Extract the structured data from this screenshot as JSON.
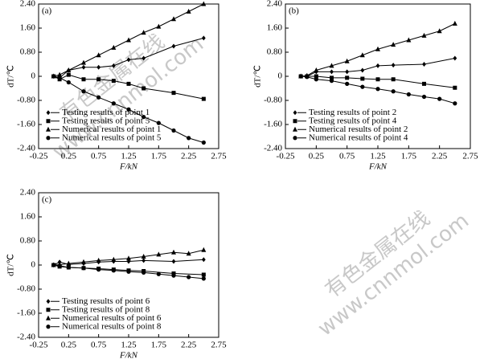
{
  "watermark": {
    "line_1": "有色金属在线",
    "line_2": "www.cnnmol.com"
  },
  "chart_data": [
    {
      "type": "line",
      "panel_label": "(a)",
      "x_label": "F/kN",
      "y_label": "dT/℃",
      "legend": "lower-left",
      "xlim": [
        -0.25,
        2.75
      ],
      "ylim": [
        -2.4,
        2.4
      ],
      "xticks": [
        {
          "value": -0.25,
          "label": "-0.25"
        },
        {
          "value": 0.25,
          "label": "0.25"
        },
        {
          "value": 0.75,
          "label": "0.75"
        },
        {
          "value": 1.25,
          "label": "1.25"
        },
        {
          "value": 1.75,
          "label": "1.75"
        },
        {
          "value": 2.25,
          "label": "2.25"
        },
        {
          "value": 2.75,
          "label": "2.75"
        }
      ],
      "yticks": [
        {
          "value": 2.4,
          "label": "2.40"
        },
        {
          "value": 1.6,
          "label": "1.60"
        },
        {
          "value": 0.8,
          "label": "0.80"
        },
        0,
        {
          "value": -0.8,
          "label": "-0.80"
        },
        {
          "value": -1.6,
          "label": "-1.60"
        },
        {
          "value": -2.4,
          "label": "-2.40"
        }
      ],
      "series": [
        {
          "name": "Testing results of point 1",
          "color": "#000000",
          "marker": "diamond",
          "x": [
            0,
            0.1,
            0.25,
            0.5,
            0.75,
            1.0,
            1.25,
            1.5,
            2.0,
            2.5
          ],
          "values": [
            0,
            -0.05,
            0.2,
            0.3,
            0.3,
            0.35,
            0.55,
            0.6,
            1.0,
            1.27
          ]
        },
        {
          "name": "Testing results of point 5",
          "color": "#000000",
          "marker": "square",
          "x": [
            0,
            0.1,
            0.25,
            0.5,
            0.75,
            1.0,
            1.25,
            1.5,
            2.0,
            2.5
          ],
          "values": [
            0,
            -0.1,
            0.05,
            -0.1,
            -0.1,
            -0.15,
            -0.25,
            -0.4,
            -0.55,
            -0.75
          ]
        },
        {
          "name": "Numerical results of point 1",
          "color": "#000000",
          "marker": "triangle",
          "x": [
            0,
            0.1,
            0.25,
            0.5,
            0.75,
            1.0,
            1.25,
            1.5,
            1.75,
            2.0,
            2.25,
            2.5
          ],
          "values": [
            0,
            0.05,
            0.2,
            0.45,
            0.7,
            0.95,
            1.2,
            1.45,
            1.65,
            1.9,
            2.15,
            2.4
          ]
        },
        {
          "name": "Numerical results of point 5",
          "color": "#000000",
          "marker": "circle",
          "x": [
            0,
            0.1,
            0.25,
            0.5,
            0.75,
            1.0,
            1.25,
            1.5,
            1.75,
            2.0,
            2.25,
            2.5
          ],
          "values": [
            0,
            -0.05,
            -0.2,
            -0.5,
            -0.7,
            -0.9,
            -1.1,
            -1.35,
            -1.55,
            -1.8,
            -2.05,
            -2.2
          ]
        }
      ]
    },
    {
      "type": "line",
      "panel_label": "(b)",
      "x_label": "F/kN",
      "y_label": "dT/℃",
      "legend": "lower-left",
      "xlim": [
        -0.25,
        2.75
      ],
      "ylim": [
        -2.4,
        2.4
      ],
      "xticks": [
        {
          "value": -0.25,
          "label": "-0.25"
        },
        {
          "value": 0.25,
          "label": "0.25"
        },
        {
          "value": 0.75,
          "label": "0.75"
        },
        {
          "value": 1.25,
          "label": "1.25"
        },
        {
          "value": 1.75,
          "label": "1.75"
        },
        {
          "value": 2.25,
          "label": "2.25"
        },
        {
          "value": 2.75,
          "label": "2.75"
        }
      ],
      "yticks": [
        {
          "value": 2.4,
          "label": "2.40"
        },
        {
          "value": 1.6,
          "label": "1.60"
        },
        {
          "value": 0.8,
          "label": "0.80"
        },
        0,
        {
          "value": -0.8,
          "label": "-0.80"
        },
        {
          "value": -1.6,
          "label": "-1.60"
        },
        {
          "value": -2.4,
          "label": "-2.40"
        }
      ],
      "series": [
        {
          "name": "Testing results of point 2",
          "color": "#000000",
          "marker": "diamond",
          "x": [
            0,
            0.1,
            0.25,
            0.5,
            0.75,
            1.0,
            1.25,
            1.5,
            2.0,
            2.5
          ],
          "values": [
            0,
            0,
            0.15,
            0.15,
            0.15,
            0.2,
            0.35,
            0.37,
            0.4,
            0.6
          ]
        },
        {
          "name": "Testing results of point 4",
          "color": "#000000",
          "marker": "square",
          "x": [
            0,
            0.1,
            0.25,
            0.5,
            0.75,
            1.0,
            1.25,
            1.5,
            2.0,
            2.5
          ],
          "values": [
            0,
            0,
            0,
            -0.05,
            -0.05,
            -0.08,
            -0.1,
            -0.1,
            -0.25,
            -0.38
          ]
        },
        {
          "name": "Numerical results of point 2",
          "color": "#000000",
          "marker": "triangle",
          "x": [
            0,
            0.1,
            0.25,
            0.5,
            0.75,
            1.0,
            1.25,
            1.5,
            1.75,
            2.0,
            2.25,
            2.5
          ],
          "values": [
            0,
            0.02,
            0.2,
            0.35,
            0.5,
            0.7,
            0.9,
            1.05,
            1.2,
            1.35,
            1.5,
            1.75
          ]
        },
        {
          "name": "Numerical results of point 4",
          "color": "#000000",
          "marker": "circle",
          "x": [
            0,
            0.1,
            0.25,
            0.5,
            0.75,
            1.0,
            1.25,
            1.5,
            1.75,
            2.0,
            2.25,
            2.5
          ],
          "values": [
            0,
            -0.02,
            -0.1,
            -0.15,
            -0.25,
            -0.35,
            -0.42,
            -0.5,
            -0.6,
            -0.68,
            -0.75,
            -0.9
          ]
        }
      ]
    },
    {
      "type": "line",
      "panel_label": "(c)",
      "x_label": "F/kN",
      "y_label": "dT/℃",
      "legend": "lower-left",
      "xlim": [
        -0.25,
        2.75
      ],
      "ylim": [
        -2.4,
        2.4
      ],
      "xticks": [
        {
          "value": -0.25,
          "label": "-0.25"
        },
        {
          "value": 0.25,
          "label": "0.25"
        },
        {
          "value": 0.75,
          "label": "0.75"
        },
        {
          "value": 1.25,
          "label": "1.25"
        },
        {
          "value": 1.75,
          "label": "1.75"
        },
        {
          "value": 2.25,
          "label": "2.25"
        },
        {
          "value": 2.75,
          "label": "2.75"
        }
      ],
      "yticks": [
        {
          "value": 2.4,
          "label": "2.40"
        },
        {
          "value": 1.6,
          "label": "1.60"
        },
        {
          "value": 0.8,
          "label": "0.80"
        },
        0,
        {
          "value": -0.8,
          "label": "-0.80"
        },
        {
          "value": -1.6,
          "label": "-1.60"
        },
        {
          "value": -2.4,
          "label": "-2.40"
        }
      ],
      "series": [
        {
          "name": "Testing results of point 6",
          "color": "#000000",
          "marker": "diamond",
          "x": [
            0,
            0.1,
            0.25,
            0.5,
            0.75,
            1.0,
            1.25,
            1.5,
            2.0,
            2.5
          ],
          "values": [
            0,
            0.1,
            0.02,
            0.05,
            0.1,
            0.12,
            0.12,
            0.15,
            0.12,
            0.18
          ]
        },
        {
          "name": "Testing results of point 8",
          "color": "#000000",
          "marker": "square",
          "x": [
            0,
            0.1,
            0.25,
            0.5,
            0.75,
            1.0,
            1.25,
            1.5,
            2.0,
            2.5
          ],
          "values": [
            0,
            -0.05,
            -0.08,
            -0.1,
            -0.12,
            -0.15,
            -0.18,
            -0.2,
            -0.28,
            -0.32
          ]
        },
        {
          "name": "Numerical results of point 6",
          "color": "#000000",
          "marker": "triangle",
          "x": [
            0,
            0.1,
            0.25,
            0.5,
            0.75,
            1.0,
            1.25,
            1.5,
            1.75,
            2.0,
            2.25,
            2.5
          ],
          "values": [
            0,
            0.01,
            0.05,
            0.1,
            0.15,
            0.18,
            0.22,
            0.28,
            0.35,
            0.42,
            0.38,
            0.5
          ]
        },
        {
          "name": "Numerical results of point 8",
          "color": "#000000",
          "marker": "circle",
          "x": [
            0,
            0.1,
            0.25,
            0.5,
            0.75,
            1.0,
            1.25,
            1.5,
            1.75,
            2.0,
            2.25,
            2.5
          ],
          "values": [
            0,
            -0.02,
            -0.08,
            -0.1,
            -0.15,
            -0.18,
            -0.22,
            -0.25,
            -0.3,
            -0.35,
            -0.4,
            -0.45
          ]
        }
      ]
    }
  ]
}
